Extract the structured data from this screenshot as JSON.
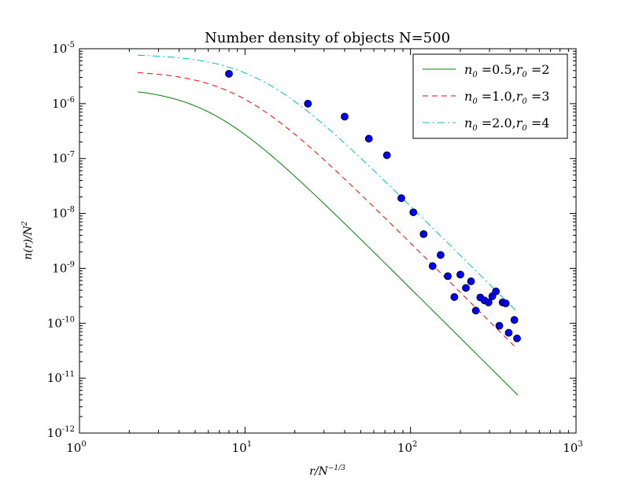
{
  "chart_data": {
    "type": "line",
    "title": "Number density of objects N=500",
    "xlabel": "r/N^{-1/3}",
    "ylabel": "n(r)/N^2",
    "xscale": "log",
    "yscale": "log",
    "xlim": [
      1,
      1000
    ],
    "ylim": [
      1e-12,
      1e-05
    ],
    "x_ticks": [
      {
        "value": 1,
        "base": "10",
        "exp": "0"
      },
      {
        "value": 10,
        "base": "10",
        "exp": "1"
      },
      {
        "value": 100,
        "base": "10",
        "exp": "2"
      },
      {
        "value": 1000,
        "base": "10",
        "exp": "3"
      }
    ],
    "y_ticks": [
      {
        "value": 1e-12,
        "base": "10",
        "exp": "-12"
      },
      {
        "value": 1e-11,
        "base": "10",
        "exp": "-11"
      },
      {
        "value": 1e-10,
        "base": "10",
        "exp": "-10"
      },
      {
        "value": 1e-09,
        "base": "10",
        "exp": "-9"
      },
      {
        "value": 1e-08,
        "base": "10",
        "exp": "-8"
      },
      {
        "value": 1e-07,
        "base": "10",
        "exp": "-7"
      },
      {
        "value": 1e-06,
        "base": "10",
        "exp": "-6"
      },
      {
        "value": 1e-05,
        "base": "10",
        "exp": "-5"
      }
    ],
    "grid": false,
    "legend_position": "top-right",
    "series": [
      {
        "name": "n_0 =0.5,r_0 =2",
        "legend_parts": {
          "n_sym": "n",
          "n_sub": "0",
          "n_val": " =0.5,",
          "r_sym": "r",
          "r_sub": "0",
          "r_val": " =2"
        },
        "style": "solid",
        "color": "#008000",
        "n0": 0.5,
        "r0": 2,
        "x_range": [
          2.25,
          445
        ]
      },
      {
        "name": "n_0 =1.0,r_0 =3",
        "legend_parts": {
          "n_sym": "n",
          "n_sub": "0",
          "n_val": " =1.0,",
          "r_sym": "r",
          "r_sub": "0",
          "r_val": " =3"
        },
        "style": "dashed",
        "color": "#ff0000",
        "n0": 1.0,
        "r0": 3,
        "x_range": [
          2.25,
          440
        ]
      },
      {
        "name": "n_0 =2.0,r_0 =4",
        "legend_parts": {
          "n_sym": "n",
          "n_sub": "0",
          "n_val": " =2.0,",
          "r_sym": "r",
          "r_sub": "0",
          "r_val": " =4"
        },
        "style": "dashdot",
        "color": "#00bfbf",
        "n0": 2.0,
        "r0": 4,
        "x_range": [
          2.25,
          440
        ]
      }
    ],
    "scatter": {
      "color": "#0000ff",
      "points": [
        {
          "x": 8,
          "y": 3.5e-06
        },
        {
          "x": 24,
          "y": 1e-06
        },
        {
          "x": 40,
          "y": 5.8e-07
        },
        {
          "x": 56,
          "y": 2.3e-07
        },
        {
          "x": 72,
          "y": 1.15e-07
        },
        {
          "x": 88,
          "y": 1.9e-08
        },
        {
          "x": 104,
          "y": 1.05e-08
        },
        {
          "x": 120,
          "y": 4.2e-09
        },
        {
          "x": 136,
          "y": 1.1e-09
        },
        {
          "x": 152,
          "y": 1.75e-09
        },
        {
          "x": 168,
          "y": 7.2e-10
        },
        {
          "x": 184,
          "y": 3e-10
        },
        {
          "x": 200,
          "y": 7.7e-10
        },
        {
          "x": 216,
          "y": 4.4e-10
        },
        {
          "x": 232,
          "y": 5.8e-10
        },
        {
          "x": 248,
          "y": 1.7e-10
        },
        {
          "x": 264,
          "y": 2.95e-10
        },
        {
          "x": 280,
          "y": 2.6e-10
        },
        {
          "x": 296,
          "y": 2.4e-10
        },
        {
          "x": 312,
          "y": 3.1e-10
        },
        {
          "x": 328,
          "y": 3.8e-10
        },
        {
          "x": 344,
          "y": 9e-11
        },
        {
          "x": 360,
          "y": 2.4e-10
        },
        {
          "x": 376,
          "y": 2.3e-10
        },
        {
          "x": 392,
          "y": 6.7e-11
        },
        {
          "x": 424,
          "y": 1.15e-10
        },
        {
          "x": 440,
          "y": 5.3e-11
        }
      ]
    }
  }
}
